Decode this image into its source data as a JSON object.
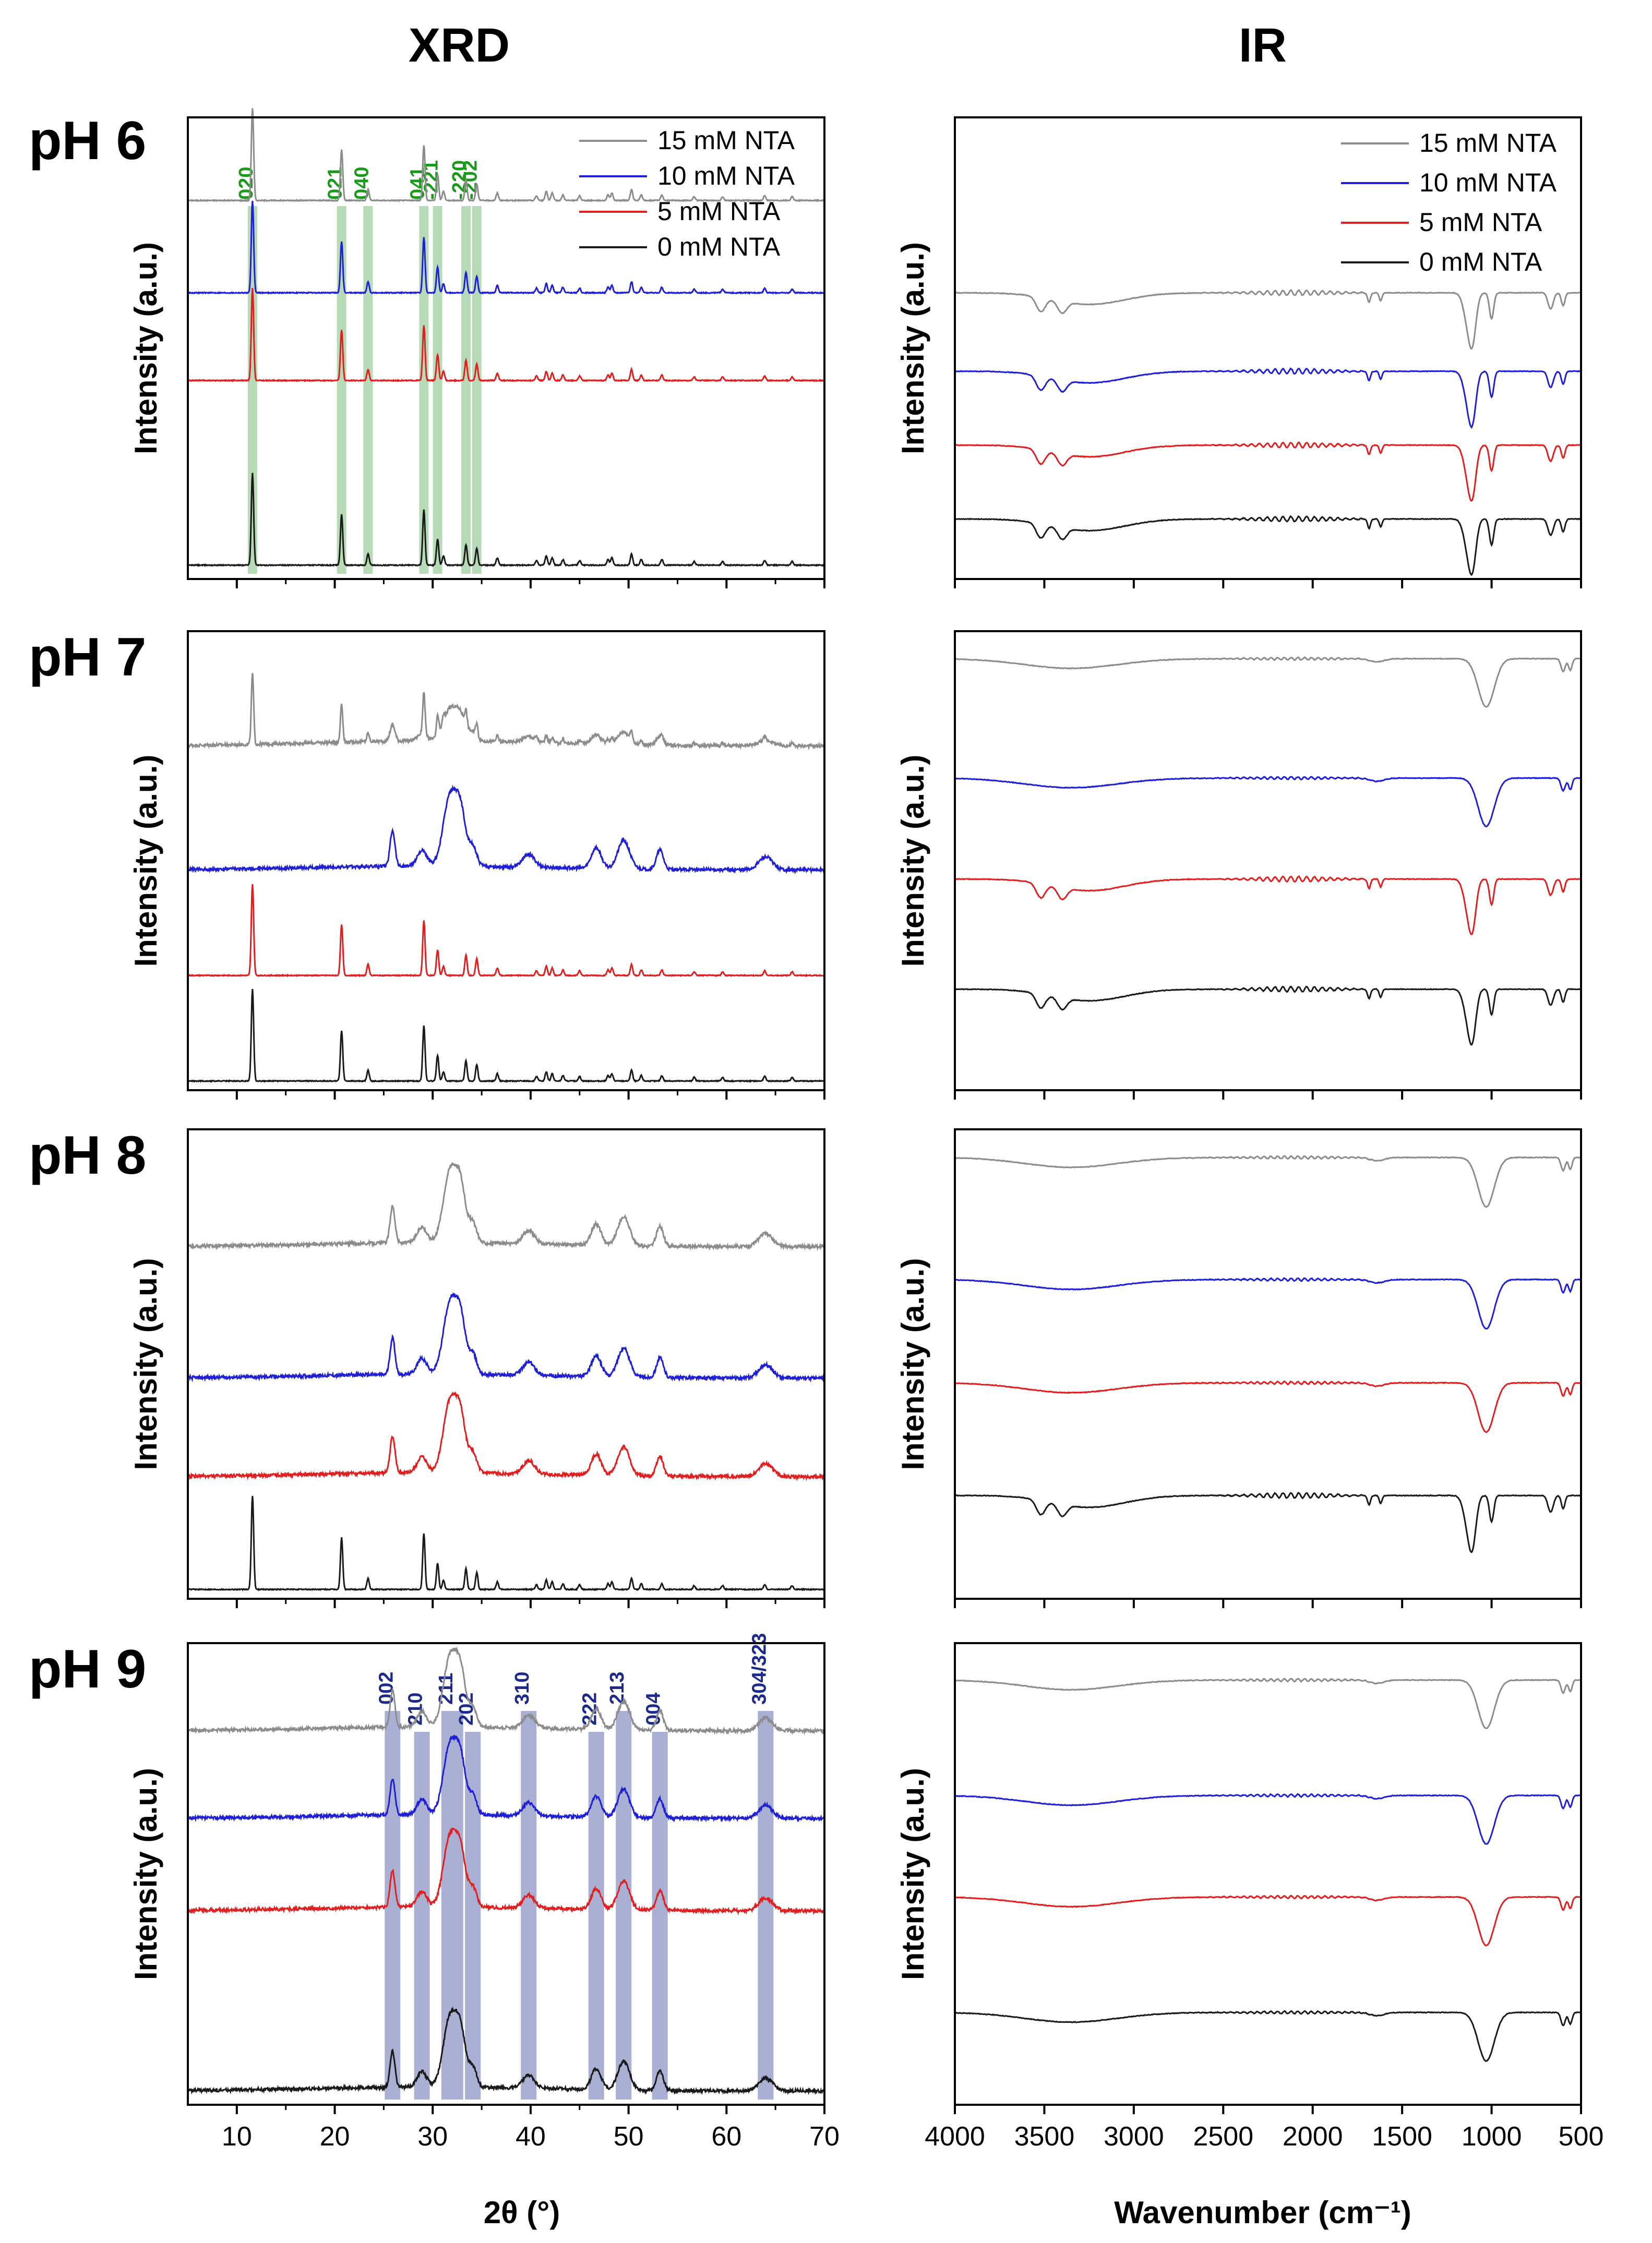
{
  "titles": {
    "xrd": "XRD",
    "ir": "IR"
  },
  "panels": [
    {
      "ph": "pH 6"
    },
    {
      "ph": "pH 7"
    },
    {
      "ph": "pH 8"
    },
    {
      "ph": "pH 9"
    }
  ],
  "axes": {
    "xrd_ylabel": "Intensity (a.u.)",
    "ir_ylabel": "Intensity (a.u.)",
    "xrd_xlabel": "2θ (°)",
    "ir_xlabel": "Wavenumber (cm⁻¹)"
  },
  "legend": [
    "15 mM NTA",
    "10 mM NTA",
    "5 mM NTA",
    "0 mM NTA"
  ],
  "colors": {
    "15 mM NTA": "#8c8c8c",
    "10 mM NTA": "#1f1fd6",
    "5 mM NTA": "#e02020",
    "0 mM NTA": "#1a1a1a",
    "ph6_planes": "#1a9a1a",
    "ph6_band": "#9fcf9f",
    "ph9_planes": "#1d2a8c",
    "ph9_band": "#8e96c4"
  },
  "chart_data": [
    {
      "type": "line",
      "title": "XRD pH 6",
      "xlabel": "2θ (°)",
      "ylabel": "Intensity (a.u.)",
      "xlim": [
        5,
        70
      ],
      "xticks": [
        10,
        20,
        30,
        40,
        50,
        60,
        70
      ],
      "series": [
        {
          "name": "15 mM NTA",
          "profile": "gypsum"
        },
        {
          "name": "10 mM NTA",
          "profile": "gypsum"
        },
        {
          "name": "5 mM NTA",
          "profile": "gypsum"
        },
        {
          "name": "0 mM NTA",
          "profile": "gypsum"
        }
      ],
      "annotations": [
        {
          "label": "020",
          "x": 11.6
        },
        {
          "label": "021",
          "x": 20.7
        },
        {
          "label": "040",
          "x": 23.4
        },
        {
          "label": "041",
          "x": 29.1
        },
        {
          "label": "-221",
          "x": 30.5
        },
        {
          "label": "-220",
          "x": 33.4
        },
        {
          "label": "-202",
          "x": 34.5
        }
      ]
    },
    {
      "type": "line",
      "title": "XRD pH 7",
      "xlabel": "2θ (°)",
      "ylabel": "Intensity (a.u.)",
      "xlim": [
        5,
        70
      ],
      "series": [
        {
          "name": "15 mM NTA",
          "profile": "mixed"
        },
        {
          "name": "10 mM NTA",
          "profile": "apatite"
        },
        {
          "name": "5 mM NTA",
          "profile": "gypsum"
        },
        {
          "name": "0 mM NTA",
          "profile": "gypsum"
        }
      ]
    },
    {
      "type": "line",
      "title": "XRD pH 8",
      "xlabel": "2θ (°)",
      "ylabel": "Intensity (a.u.)",
      "xlim": [
        5,
        70
      ],
      "series": [
        {
          "name": "15 mM NTA",
          "profile": "apatite"
        },
        {
          "name": "10 mM NTA",
          "profile": "apatite"
        },
        {
          "name": "5 mM NTA",
          "profile": "apatite"
        },
        {
          "name": "0 mM NTA",
          "profile": "gypsum"
        }
      ]
    },
    {
      "type": "line",
      "title": "XRD pH 9",
      "xlabel": "2θ (°)",
      "ylabel": "Intensity (a.u.)",
      "xlim": [
        5,
        70
      ],
      "xticks": [
        10,
        20,
        30,
        40,
        50,
        60,
        70
      ],
      "series": [
        {
          "name": "15 mM NTA",
          "profile": "apatite"
        },
        {
          "name": "10 mM NTA",
          "profile": "apatite"
        },
        {
          "name": "5 mM NTA",
          "profile": "apatite"
        },
        {
          "name": "0 mM NTA",
          "profile": "apatite"
        }
      ],
      "annotations": [
        {
          "label": "002",
          "x": 25.9
        },
        {
          "label": "210",
          "x": 28.9
        },
        {
          "label": "211",
          "x": 32.0
        },
        {
          "label": "202",
          "x": 34.1
        },
        {
          "label": "310",
          "x": 39.8
        },
        {
          "label": "222",
          "x": 46.7
        },
        {
          "label": "213",
          "x": 49.5
        },
        {
          "label": "004",
          "x": 53.2
        },
        {
          "label": "304/323",
          "x": 64.0
        }
      ]
    },
    {
      "type": "line",
      "title": "IR pH 6",
      "xlabel": "Wavenumber (cm⁻¹)",
      "ylabel": "Intensity (a.u.)",
      "xlim": [
        4000,
        500
      ],
      "xticks": [
        4000,
        3500,
        3000,
        2500,
        2000,
        1500,
        1000,
        500
      ],
      "series": [
        {
          "name": "15 mM NTA",
          "profile": "gypsum"
        },
        {
          "name": "10 mM NTA",
          "profile": "gypsum"
        },
        {
          "name": "5 mM NTA",
          "profile": "gypsum"
        },
        {
          "name": "0 mM NTA",
          "profile": "gypsum"
        }
      ]
    },
    {
      "type": "line",
      "title": "IR pH 7",
      "xlabel": "Wavenumber (cm⁻¹)",
      "ylabel": "Intensity (a.u.)",
      "xlim": [
        4000,
        500
      ],
      "series": [
        {
          "name": "15 mM NTA",
          "profile": "apatite"
        },
        {
          "name": "10 mM NTA",
          "profile": "apatite"
        },
        {
          "name": "5 mM NTA",
          "profile": "gypsum"
        },
        {
          "name": "0 mM NTA",
          "profile": "gypsum"
        }
      ]
    },
    {
      "type": "line",
      "title": "IR pH 8",
      "xlabel": "Wavenumber (cm⁻¹)",
      "ylabel": "Intensity (a.u.)",
      "xlim": [
        4000,
        500
      ],
      "series": [
        {
          "name": "15 mM NTA",
          "profile": "apatite"
        },
        {
          "name": "10 mM NTA",
          "profile": "apatite"
        },
        {
          "name": "5 mM NTA",
          "profile": "apatite"
        },
        {
          "name": "0 mM NTA",
          "profile": "gypsum"
        }
      ]
    },
    {
      "type": "line",
      "title": "IR pH 9",
      "xlabel": "Wavenumber (cm⁻¹)",
      "ylabel": "Intensity (a.u.)",
      "xlim": [
        4000,
        500
      ],
      "xticks": [
        4000,
        3500,
        3000,
        2500,
        2000,
        1500,
        1000,
        500
      ],
      "series": [
        {
          "name": "15 mM NTA",
          "profile": "apatite"
        },
        {
          "name": "10 mM NTA",
          "profile": "apatite"
        },
        {
          "name": "5 mM NTA",
          "profile": "apatite"
        },
        {
          "name": "0 mM NTA",
          "profile": "apatite"
        }
      ]
    }
  ]
}
